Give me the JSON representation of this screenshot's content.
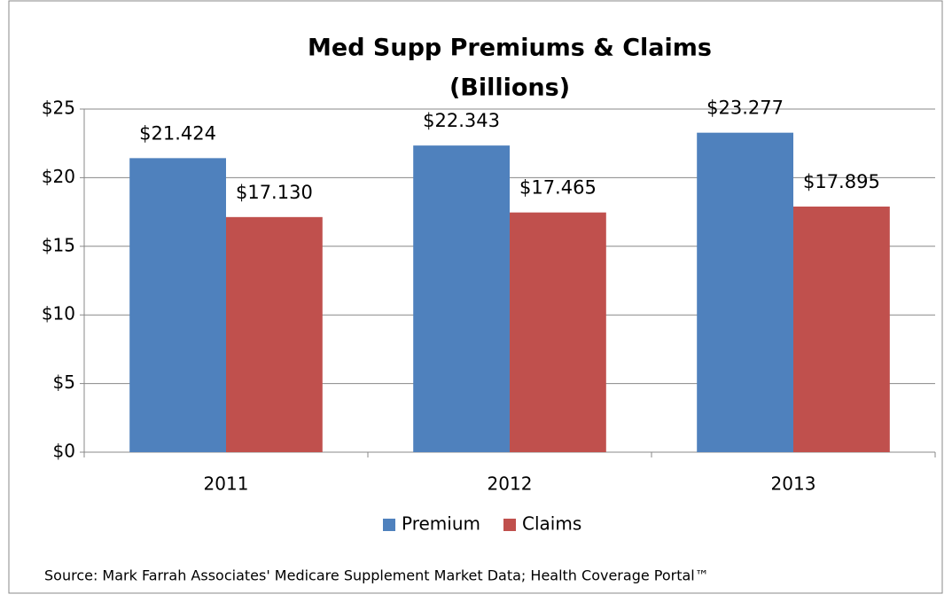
{
  "chart_data": {
    "type": "bar",
    "title": "Med Supp Premiums & Claims",
    "subtitle": "(Billions)",
    "categories": [
      "2011",
      "2012",
      "2013"
    ],
    "series": [
      {
        "name": "Premium",
        "color": "#4f81bd",
        "values": [
          21.424,
          22.343,
          23.277
        ],
        "value_labels": [
          "$21.424",
          "$22.343",
          "$23.277"
        ]
      },
      {
        "name": "Claims",
        "color": "#c0504d",
        "values": [
          17.13,
          17.465,
          17.895
        ],
        "value_labels": [
          "$17.130",
          "$17.465",
          "$17.895"
        ]
      }
    ],
    "ylim": [
      0,
      25
    ],
    "yticks": [
      {
        "value": 0,
        "label": "$0"
      },
      {
        "value": 5,
        "label": "$5"
      },
      {
        "value": 10,
        "label": "$10"
      },
      {
        "value": 15,
        "label": "$15"
      },
      {
        "value": 20,
        "label": "$20"
      },
      {
        "value": 25,
        "label": "$25"
      }
    ],
    "grid": true,
    "legend": "bottom",
    "source": "Source:  Mark Farrah Associates' Medicare Supplement Market Data; Health Coverage Portal™"
  }
}
